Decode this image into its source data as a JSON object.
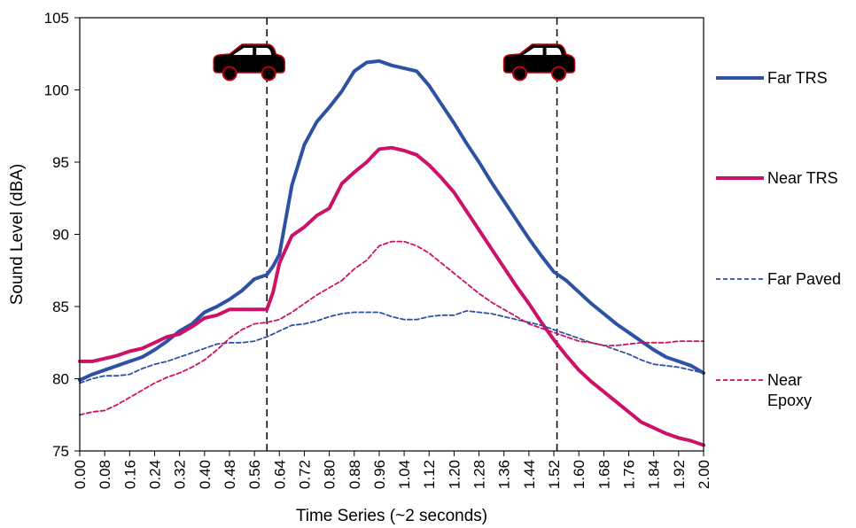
{
  "chart_data": {
    "type": "line",
    "xlabel": "Time Series (~2 seconds)",
    "ylabel": "Sound Level (dBA)",
    "ylim": [
      75,
      105
    ],
    "xlim": [
      0,
      2
    ],
    "yticks": [
      "75",
      "80",
      "85",
      "90",
      "95",
      "100",
      "105"
    ],
    "xticks": [
      "0.00",
      "0.08",
      "0.16",
      "0.24",
      "0.32",
      "0.40",
      "0.48",
      "0.56",
      "0.64",
      "0.72",
      "0.80",
      "0.88",
      "0.96",
      "1.04",
      "1.12",
      "1.20",
      "1.28",
      "1.36",
      "1.44",
      "1.52",
      "1.60",
      "1.68",
      "1.76",
      "1.84",
      "1.92",
      "2.00"
    ],
    "grid": false,
    "legend_position": "right",
    "event_lines_x": [
      0.6,
      1.53
    ],
    "event_icon": "car-icon",
    "series": [
      {
        "name": "Far TRS",
        "color": "#2e52a3",
        "style": "solid",
        "x": [
          0,
          0.04,
          0.08,
          0.12,
          0.16,
          0.2,
          0.24,
          0.28,
          0.32,
          0.36,
          0.4,
          0.44,
          0.48,
          0.52,
          0.56,
          0.6,
          0.62,
          0.64,
          0.68,
          0.72,
          0.76,
          0.8,
          0.84,
          0.88,
          0.92,
          0.96,
          1.0,
          1.04,
          1.08,
          1.12,
          1.16,
          1.2,
          1.24,
          1.28,
          1.32,
          1.36,
          1.4,
          1.44,
          1.48,
          1.52,
          1.56,
          1.6,
          1.64,
          1.68,
          1.72,
          1.76,
          1.8,
          1.84,
          1.88,
          1.92,
          1.96,
          2.0
        ],
        "values": [
          79.9,
          80.3,
          80.6,
          80.9,
          81.2,
          81.5,
          82.0,
          82.6,
          83.3,
          83.8,
          84.6,
          85.0,
          85.5,
          86.1,
          86.9,
          87.2,
          87.8,
          88.6,
          93.4,
          96.2,
          97.8,
          98.8,
          99.9,
          101.3,
          101.9,
          102.0,
          101.7,
          101.5,
          101.3,
          100.3,
          99.0,
          97.7,
          96.3,
          95.0,
          93.6,
          92.3,
          91.0,
          89.7,
          88.5,
          87.4,
          86.8,
          86.0,
          85.2,
          84.5,
          83.8,
          83.2,
          82.6,
          82.0,
          81.5,
          81.2,
          80.9,
          80.4
        ]
      },
      {
        "name": "Near TRS",
        "color": "#cc1166",
        "style": "solid",
        "x": [
          0,
          0.04,
          0.08,
          0.12,
          0.16,
          0.2,
          0.24,
          0.28,
          0.32,
          0.36,
          0.4,
          0.44,
          0.48,
          0.52,
          0.56,
          0.6,
          0.62,
          0.64,
          0.68,
          0.72,
          0.76,
          0.8,
          0.84,
          0.88,
          0.92,
          0.96,
          1.0,
          1.04,
          1.08,
          1.12,
          1.16,
          1.2,
          1.24,
          1.28,
          1.32,
          1.36,
          1.4,
          1.44,
          1.48,
          1.52,
          1.56,
          1.6,
          1.64,
          1.68,
          1.72,
          1.76,
          1.8,
          1.84,
          1.88,
          1.92,
          1.96,
          2.0
        ],
        "values": [
          81.2,
          81.2,
          81.4,
          81.6,
          81.9,
          82.1,
          82.5,
          82.9,
          83.1,
          83.6,
          84.2,
          84.4,
          84.8,
          84.8,
          84.8,
          84.8,
          86.0,
          88.0,
          89.9,
          90.5,
          91.3,
          91.8,
          93.5,
          94.3,
          95.0,
          95.9,
          96.0,
          95.8,
          95.5,
          94.8,
          93.9,
          92.9,
          91.6,
          90.3,
          89.0,
          87.7,
          86.4,
          85.2,
          83.9,
          82.7,
          81.6,
          80.6,
          79.8,
          79.1,
          78.4,
          77.7,
          77.0,
          76.6,
          76.2,
          75.9,
          75.7,
          75.4
        ]
      },
      {
        "name": "Far Paved",
        "color": "#2e52a3",
        "style": "dashed",
        "x": [
          0,
          0.04,
          0.08,
          0.12,
          0.16,
          0.2,
          0.24,
          0.28,
          0.32,
          0.36,
          0.4,
          0.44,
          0.48,
          0.52,
          0.56,
          0.6,
          0.64,
          0.68,
          0.72,
          0.76,
          0.8,
          0.84,
          0.88,
          0.92,
          0.96,
          1.0,
          1.04,
          1.08,
          1.12,
          1.16,
          1.2,
          1.24,
          1.28,
          1.32,
          1.36,
          1.4,
          1.44,
          1.48,
          1.52,
          1.56,
          1.6,
          1.64,
          1.68,
          1.72,
          1.76,
          1.8,
          1.84,
          1.88,
          1.92,
          1.96,
          2.0
        ],
        "values": [
          79.7,
          80.0,
          80.2,
          80.2,
          80.3,
          80.7,
          81.0,
          81.2,
          81.5,
          81.8,
          82.1,
          82.4,
          82.5,
          82.5,
          82.6,
          82.9,
          83.3,
          83.7,
          83.8,
          84.0,
          84.3,
          84.5,
          84.6,
          84.6,
          84.6,
          84.3,
          84.1,
          84.1,
          84.3,
          84.4,
          84.4,
          84.7,
          84.6,
          84.5,
          84.3,
          84.1,
          83.9,
          83.7,
          83.4,
          83.1,
          82.8,
          82.5,
          82.3,
          82.0,
          81.7,
          81.3,
          81.0,
          80.9,
          80.8,
          80.6,
          80.4
        ]
      },
      {
        "name": "Near\nEpoxy",
        "color": "#cc1166",
        "style": "dashed",
        "x": [
          0,
          0.04,
          0.08,
          0.12,
          0.16,
          0.2,
          0.24,
          0.28,
          0.32,
          0.36,
          0.4,
          0.44,
          0.48,
          0.52,
          0.56,
          0.6,
          0.64,
          0.68,
          0.72,
          0.76,
          0.8,
          0.84,
          0.88,
          0.92,
          0.96,
          1.0,
          1.04,
          1.08,
          1.12,
          1.16,
          1.2,
          1.24,
          1.28,
          1.32,
          1.36,
          1.4,
          1.44,
          1.48,
          1.52,
          1.56,
          1.6,
          1.64,
          1.68,
          1.72,
          1.76,
          1.8,
          1.84,
          1.88,
          1.92,
          1.96,
          2.0
        ],
        "values": [
          77.5,
          77.7,
          77.8,
          78.2,
          78.7,
          79.2,
          79.7,
          80.1,
          80.4,
          80.8,
          81.3,
          82.0,
          82.8,
          83.4,
          83.8,
          83.9,
          84.1,
          84.6,
          85.2,
          85.8,
          86.3,
          86.8,
          87.6,
          88.2,
          89.2,
          89.5,
          89.5,
          89.2,
          88.7,
          88.0,
          87.3,
          86.6,
          85.9,
          85.3,
          84.8,
          84.3,
          83.8,
          83.5,
          83.2,
          82.9,
          82.6,
          82.5,
          82.3,
          82.3,
          82.4,
          82.5,
          82.5,
          82.5,
          82.6,
          82.6,
          82.6
        ]
      }
    ]
  }
}
